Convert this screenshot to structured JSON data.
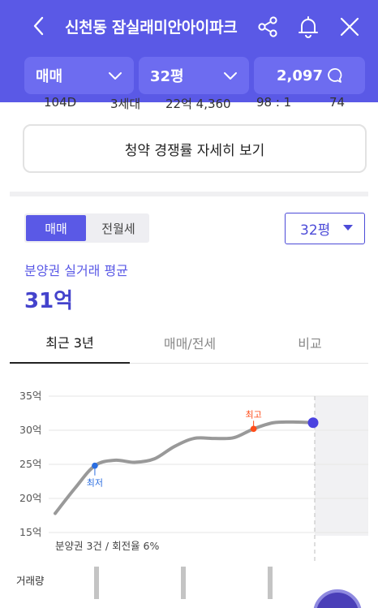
{
  "header": {
    "title": "신천동 잠실래미안아이파크",
    "back_icon": "chevron-left-icon",
    "share_icon": "share-icon",
    "bell_icon": "bell-icon",
    "close_icon": "close-icon"
  },
  "filters": {
    "trade_type": "매매",
    "size": "32평",
    "count": "2,097"
  },
  "peek_row": {
    "unit": "104D",
    "households": "3세대",
    "price": "22억 4,360",
    "ratio": "98 : 1",
    "score": "74"
  },
  "detail_button": "청약 경쟁률 자세히 보기",
  "toggle": {
    "active": "매매",
    "inactive": "전월세"
  },
  "size_select": "32평",
  "average": {
    "label": "분양권 실거래 평균",
    "value": "31억"
  },
  "tabs": [
    "최근 3년",
    "매매/전세",
    "비교"
  ],
  "chart_data": {
    "type": "line",
    "y_ticks": [
      "35억",
      "30억",
      "25억",
      "20억",
      "15억"
    ],
    "ylim": [
      15,
      35
    ],
    "x": [
      0,
      1,
      2,
      3,
      4,
      5,
      6,
      7,
      8,
      9,
      10,
      11,
      12,
      13
    ],
    "values": [
      17.8,
      21.5,
      24.8,
      25.6,
      25.3,
      25.8,
      27.6,
      28.8,
      28.8,
      28.9,
      30.2,
      31.1,
      31.2,
      31.1
    ],
    "max_label": "최고",
    "min_label": "최저",
    "footnote": "분양권 3건 / 회전율 6%",
    "volume_label": "거래량",
    "line_color": "#999999",
    "max_color": "#ff4d1a",
    "min_color": "#2a6de0",
    "current_color": "#4a42e0"
  }
}
